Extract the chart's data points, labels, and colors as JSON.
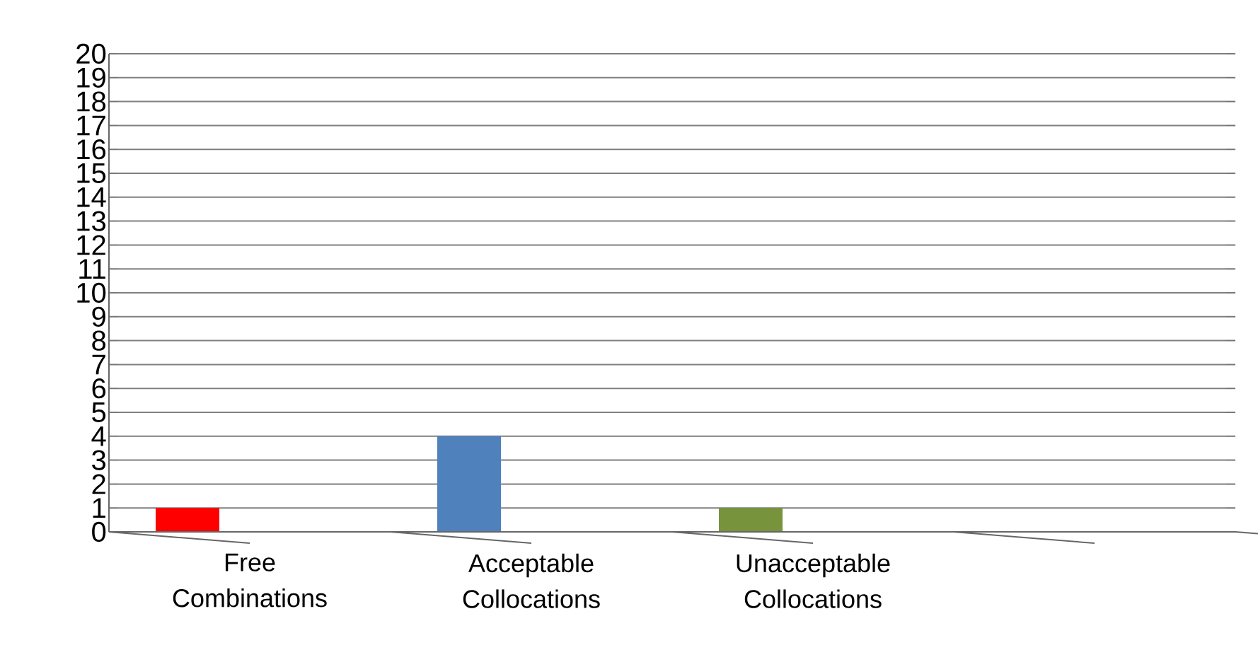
{
  "chart_data": {
    "type": "bar",
    "categories": [
      "Free Combinations",
      "Acceptable Collocations",
      "Unacceptable Collocations",
      null
    ],
    "values": [
      1,
      4,
      1,
      null
    ],
    "colors": [
      "#ff0000",
      "#4f81bd",
      "#77933c",
      "#000000"
    ],
    "ylim": [
      0,
      20
    ],
    "yticks": [
      0,
      1,
      2,
      3,
      4,
      5,
      6,
      7,
      8,
      9,
      10,
      11,
      12,
      13,
      14,
      15,
      16,
      17,
      18,
      19,
      20
    ],
    "grid": "y"
  }
}
